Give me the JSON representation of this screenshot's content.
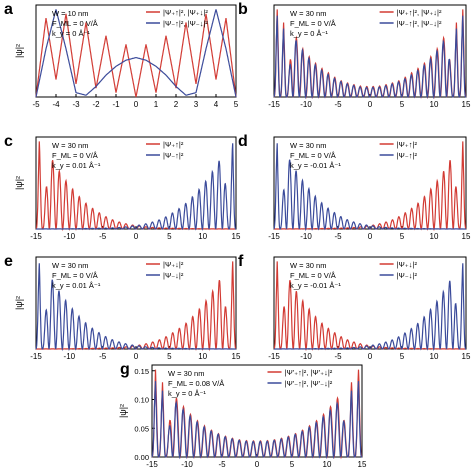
{
  "figure": {
    "ylabel": "|ψ|²"
  },
  "chart_data": [
    {
      "type": "line",
      "panel_label": "a",
      "annotation": [
        "W = 10 nm",
        "F_ML = 0 V/Å",
        "k_y = 0 Å⁻¹"
      ],
      "xlim": [
        -5,
        5
      ],
      "xticks": [
        -5,
        -4,
        -3,
        -2,
        -1,
        0,
        1,
        2,
        3,
        4,
        5
      ],
      "ylabel": "|ψ|²",
      "series": [
        {
          "name": "|Ψ₊↑|², |Ψ₊↓|²",
          "color": "#d23a33",
          "x": [
            -5,
            -4.5,
            -4,
            -3.5,
            -3,
            -2.5,
            -2,
            -1.5,
            -1,
            -0.5,
            0,
            0.5,
            1,
            1.5,
            2,
            2.5,
            3,
            3.5,
            4,
            4.5,
            5
          ],
          "y": [
            0,
            0.9,
            0.2,
            0.95,
            0.15,
            0.85,
            0.1,
            0.7,
            0.05,
            0.6,
            0,
            0.6,
            0.05,
            0.7,
            0.1,
            0.85,
            0.15,
            0.95,
            0.2,
            0.9,
            0
          ]
        },
        {
          "name": "|Ψ₋↑|², |Ψ₋↓|²",
          "color": "#3a4a9a",
          "x": [
            -5,
            -4.5,
            -4,
            -3.5,
            -3,
            -2.5,
            -2,
            -1.5,
            -1,
            -0.5,
            0,
            0.5,
            1,
            1.5,
            2,
            2.5,
            3,
            3.5,
            4,
            4.5,
            5
          ],
          "y": [
            0,
            0.55,
            1.0,
            0.55,
            0.05,
            0.02,
            0.12,
            0.25,
            0.35,
            0.42,
            0.45,
            0.42,
            0.35,
            0.25,
            0.12,
            0.02,
            0.05,
            0.55,
            1.0,
            0.55,
            0
          ]
        }
      ]
    },
    {
      "type": "line",
      "panel_label": "b",
      "annotation": [
        "W = 30 nm",
        "F_ML = 0 V/Å",
        "k_y = 0 Å⁻¹"
      ],
      "xlim": [
        -15,
        15
      ],
      "xticks": [
        -15,
        -10,
        -5,
        0,
        5,
        10,
        15
      ],
      "series": [
        {
          "name": "|Ψ₊↑|², |Ψ₊↓|²",
          "color": "#d23a33",
          "x": [
            -15,
            -14.5,
            -14,
            -13.5,
            -13,
            -12,
            -11,
            -10,
            -9,
            -8,
            -7,
            -6,
            -5,
            -4,
            -3,
            -2,
            -1,
            0,
            1,
            2,
            3,
            4,
            5,
            6,
            7,
            8,
            9,
            10,
            11,
            12,
            13,
            13.5,
            14,
            14.5,
            15
          ],
          "y": [
            0,
            1.0,
            0.1,
            0.85,
            0.05,
            0.75,
            0.6,
            0.5,
            0.42,
            0.35,
            0.3,
            0.25,
            0.2,
            0.17,
            0.15,
            0.13,
            0.12,
            0.12,
            0.12,
            0.13,
            0.15,
            0.17,
            0.2,
            0.25,
            0.3,
            0.35,
            0.42,
            0.5,
            0.6,
            0.75,
            0.05,
            0.85,
            0.1,
            1.0,
            0
          ]
        },
        {
          "name": "|Ψ₋↑|², |Ψ₋↓|²",
          "color": "#3a4a9a",
          "x": [
            -15,
            -14.5,
            -14,
            -13.5,
            -13,
            -12,
            -11,
            -10,
            -9,
            -8,
            -7,
            -6,
            -5,
            -4,
            -3,
            -2,
            -1,
            0,
            1,
            2,
            3,
            4,
            5,
            6,
            7,
            8,
            9,
            10,
            11,
            12,
            13,
            13.5,
            14,
            14.5,
            15
          ],
          "y": [
            0,
            0.95,
            0.1,
            0.8,
            0.05,
            0.7,
            0.58,
            0.48,
            0.4,
            0.33,
            0.28,
            0.23,
            0.19,
            0.16,
            0.14,
            0.12,
            0.11,
            0.11,
            0.11,
            0.12,
            0.14,
            0.16,
            0.19,
            0.23,
            0.28,
            0.33,
            0.4,
            0.48,
            0.58,
            0.7,
            0.05,
            0.8,
            0.1,
            0.95,
            0
          ]
        }
      ]
    },
    {
      "type": "line",
      "panel_label": "c",
      "annotation": [
        "W = 30 nm",
        "F_ML = 0 V/Å",
        "k_y = 0.01 Å⁻¹"
      ],
      "xlim": [
        -15,
        15
      ],
      "xticks": [
        -15,
        -10,
        -5,
        0,
        5,
        10,
        15
      ],
      "ylabel": "|ψ|²",
      "series": [
        {
          "name": "|Ψ₊↑|²",
          "color": "#d23a33",
          "x": [
            -15,
            -14.5,
            -14,
            -13,
            -12,
            -11,
            -10,
            -9,
            -8,
            -7,
            -6,
            -5,
            -4,
            -3,
            -2,
            -1,
            0,
            1,
            2,
            3,
            4,
            5,
            6,
            7,
            8,
            9,
            10,
            11,
            12,
            13,
            14,
            15
          ],
          "y": [
            0,
            1.0,
            0.05,
            0.85,
            0.72,
            0.6,
            0.5,
            0.41,
            0.33,
            0.26,
            0.21,
            0.16,
            0.12,
            0.09,
            0.07,
            0.05,
            0.04,
            0.03,
            0.02,
            0.015,
            0.01,
            0.01,
            0.008,
            0.006,
            0.005,
            0.004,
            0.003,
            0.002,
            0.001,
            0.001,
            0.001,
            0
          ]
        },
        {
          "name": "|Ψ₋↑|²",
          "color": "#3a4a9a",
          "x": [
            -15,
            -14,
            -13,
            -12,
            -11,
            -10,
            -9,
            -8,
            -7,
            -6,
            -5,
            -4,
            -3,
            -2,
            -1,
            0,
            1,
            2,
            3,
            4,
            5,
            6,
            7,
            8,
            9,
            10,
            11,
            12,
            13,
            14,
            14.5,
            15
          ],
          "y": [
            0,
            0.001,
            0.001,
            0.001,
            0.002,
            0.003,
            0.004,
            0.005,
            0.006,
            0.008,
            0.01,
            0.01,
            0.015,
            0.02,
            0.03,
            0.04,
            0.05,
            0.07,
            0.09,
            0.12,
            0.16,
            0.21,
            0.26,
            0.33,
            0.41,
            0.5,
            0.6,
            0.72,
            0.85,
            0.05,
            1.0,
            0
          ]
        }
      ]
    },
    {
      "type": "line",
      "panel_label": "d",
      "annotation": [
        "W = 30 nm",
        "F_ML = 0 V/Å",
        "k_y = -0.01 Å⁻¹"
      ],
      "xlim": [
        -15,
        15
      ],
      "xticks": [
        -15,
        -10,
        -5,
        0,
        5,
        10,
        15
      ],
      "series": [
        {
          "name": "|Ψ₊↑|²",
          "color": "#d23a33",
          "x": [
            -15,
            -14,
            -13,
            -12,
            -11,
            -10,
            -9,
            -8,
            -7,
            -6,
            -5,
            -4,
            -3,
            -2,
            -1,
            0,
            1,
            2,
            3,
            4,
            5,
            6,
            7,
            8,
            9,
            10,
            11,
            12,
            13,
            14,
            14.5,
            15
          ],
          "y": [
            0,
            0.001,
            0.001,
            0.001,
            0.002,
            0.003,
            0.004,
            0.005,
            0.006,
            0.008,
            0.01,
            0.01,
            0.015,
            0.02,
            0.03,
            0.04,
            0.05,
            0.07,
            0.09,
            0.12,
            0.16,
            0.21,
            0.26,
            0.33,
            0.41,
            0.5,
            0.6,
            0.72,
            0.85,
            0.05,
            1.0,
            0
          ]
        },
        {
          "name": "|Ψ₋↑|²",
          "color": "#3a4a9a",
          "x": [
            -15,
            -14.5,
            -14,
            -13,
            -12,
            -11,
            -10,
            -9,
            -8,
            -7,
            -6,
            -5,
            -4,
            -3,
            -2,
            -1,
            0,
            1,
            2,
            3,
            4,
            5,
            6,
            7,
            8,
            9,
            10,
            11,
            12,
            13,
            14,
            15
          ],
          "y": [
            0,
            1.0,
            0.05,
            0.85,
            0.72,
            0.6,
            0.5,
            0.41,
            0.33,
            0.26,
            0.21,
            0.16,
            0.12,
            0.09,
            0.07,
            0.05,
            0.04,
            0.03,
            0.02,
            0.015,
            0.01,
            0.01,
            0.008,
            0.006,
            0.005,
            0.004,
            0.003,
            0.002,
            0.001,
            0.001,
            0.001,
            0
          ]
        }
      ]
    },
    {
      "type": "line",
      "panel_label": "e",
      "annotation": [
        "W = 30 nm",
        "F_ML = 0 V/Å",
        "k_y = 0.01 Å⁻¹"
      ],
      "xlim": [
        -15,
        15
      ],
      "xticks": [
        -15,
        -10,
        -5,
        0,
        5,
        10,
        15
      ],
      "ylabel": "|ψ|²",
      "series": [
        {
          "name": "|Ψ₊↓|²",
          "color": "#d23a33",
          "x": [
            -15,
            -14,
            -13,
            -12,
            -11,
            -10,
            -9,
            -8,
            -7,
            -6,
            -5,
            -4,
            -3,
            -2,
            -1,
            0,
            1,
            2,
            3,
            4,
            5,
            6,
            7,
            8,
            9,
            10,
            11,
            12,
            13,
            14,
            14.5,
            15
          ],
          "y": [
            0,
            0.001,
            0.001,
            0.001,
            0.002,
            0.003,
            0.004,
            0.005,
            0.006,
            0.008,
            0.01,
            0.01,
            0.015,
            0.02,
            0.03,
            0.04,
            0.05,
            0.07,
            0.09,
            0.12,
            0.16,
            0.21,
            0.26,
            0.33,
            0.41,
            0.5,
            0.6,
            0.72,
            0.85,
            0.05,
            1.0,
            0
          ]
        },
        {
          "name": "|Ψ₋↓|²",
          "color": "#3a4a9a",
          "x": [
            -15,
            -14.5,
            -14,
            -13,
            -12,
            -11,
            -10,
            -9,
            -8,
            -7,
            -6,
            -5,
            -4,
            -3,
            -2,
            -1,
            0,
            1,
            2,
            3,
            4,
            5,
            6,
            7,
            8,
            9,
            10,
            11,
            12,
            13,
            14,
            15
          ],
          "y": [
            0,
            1.0,
            0.05,
            0.85,
            0.72,
            0.6,
            0.5,
            0.41,
            0.33,
            0.26,
            0.21,
            0.16,
            0.12,
            0.09,
            0.07,
            0.05,
            0.04,
            0.03,
            0.02,
            0.015,
            0.01,
            0.01,
            0.008,
            0.006,
            0.005,
            0.004,
            0.003,
            0.002,
            0.001,
            0.001,
            0.001,
            0
          ]
        }
      ]
    },
    {
      "type": "line",
      "panel_label": "f",
      "annotation": [
        "W = 30 nm",
        "F_ML = 0 V/Å",
        "k_y = -0.01 Å⁻¹"
      ],
      "xlim": [
        -15,
        15
      ],
      "xticks": [
        -15,
        -10,
        -5,
        0,
        5,
        10,
        15
      ],
      "series": [
        {
          "name": "|Ψ₊↓|²",
          "color": "#d23a33",
          "x": [
            -15,
            -14.5,
            -14,
            -13,
            -12,
            -11,
            -10,
            -9,
            -8,
            -7,
            -6,
            -5,
            -4,
            -3,
            -2,
            -1,
            0,
            1,
            2,
            3,
            4,
            5,
            6,
            7,
            8,
            9,
            10,
            11,
            12,
            13,
            14,
            15
          ],
          "y": [
            0,
            1.0,
            0.05,
            0.85,
            0.72,
            0.6,
            0.5,
            0.41,
            0.33,
            0.26,
            0.21,
            0.16,
            0.12,
            0.09,
            0.07,
            0.05,
            0.04,
            0.03,
            0.02,
            0.015,
            0.01,
            0.01,
            0.008,
            0.006,
            0.005,
            0.004,
            0.003,
            0.002,
            0.001,
            0.001,
            0.001,
            0
          ]
        },
        {
          "name": "|Ψ₋↓|²",
          "color": "#3a4a9a",
          "x": [
            -15,
            -14,
            -13,
            -12,
            -11,
            -10,
            -9,
            -8,
            -7,
            -6,
            -5,
            -4,
            -3,
            -2,
            -1,
            0,
            1,
            2,
            3,
            4,
            5,
            6,
            7,
            8,
            9,
            10,
            11,
            12,
            13,
            14,
            14.5,
            15
          ],
          "y": [
            0,
            0.001,
            0.001,
            0.001,
            0.002,
            0.003,
            0.004,
            0.005,
            0.006,
            0.008,
            0.01,
            0.01,
            0.015,
            0.02,
            0.03,
            0.04,
            0.05,
            0.07,
            0.09,
            0.12,
            0.16,
            0.21,
            0.26,
            0.33,
            0.41,
            0.5,
            0.6,
            0.72,
            0.85,
            0.05,
            1.0,
            0
          ]
        }
      ]
    },
    {
      "type": "line",
      "panel_label": "g",
      "annotation": [
        "W = 30 nm",
        "F_ML = 0.08 V/Å",
        "k_y = 0 Å⁻¹"
      ],
      "xlim": [
        -15,
        15
      ],
      "ylim": [
        0,
        0.16
      ],
      "xticks": [
        -15,
        -10,
        -5,
        0,
        5,
        10,
        15
      ],
      "yticks": [
        0.0,
        0.05,
        0.1,
        0.15
      ],
      "ylabel": "|ψ|²",
      "series": [
        {
          "name": "|Ψ'₊↑|², |Ψ'₊↓|²",
          "color": "#d23a33",
          "x": [
            -15,
            -14.5,
            -14,
            -13.5,
            -13,
            -12,
            -11,
            -10,
            -9,
            -8,
            -7,
            -6,
            -5,
            -4,
            -3,
            -2,
            -1,
            0,
            1,
            2,
            3,
            4,
            5,
            6,
            7,
            8,
            9,
            10,
            11,
            12,
            13,
            13.5,
            14,
            14.5,
            15
          ],
          "y": [
            0,
            0.152,
            0.01,
            0.13,
            0.01,
            0.11,
            0.095,
            0.08,
            0.068,
            0.058,
            0.05,
            0.043,
            0.038,
            0.034,
            0.031,
            0.029,
            0.028,
            0.028,
            0.028,
            0.029,
            0.031,
            0.034,
            0.038,
            0.043,
            0.05,
            0.058,
            0.068,
            0.08,
            0.095,
            0.11,
            0.01,
            0.13,
            0.01,
            0.152,
            0
          ]
        },
        {
          "name": "|Ψ'₋↑|², |Ψ'₋↓|²",
          "color": "#3a4a9a",
          "x": [
            -15,
            -14.5,
            -14,
            -13.5,
            -13,
            -12,
            -11,
            -10,
            -9,
            -8,
            -7,
            -6,
            -5,
            -4,
            -3,
            -2,
            -1,
            0,
            1,
            2,
            3,
            4,
            5,
            6,
            7,
            8,
            9,
            10,
            11,
            12,
            13,
            13.5,
            14,
            14.5,
            15
          ],
          "y": [
            0,
            0.135,
            0.01,
            0.118,
            0.01,
            0.1,
            0.088,
            0.076,
            0.065,
            0.056,
            0.048,
            0.042,
            0.037,
            0.033,
            0.03,
            0.028,
            0.027,
            0.027,
            0.027,
            0.028,
            0.03,
            0.033,
            0.037,
            0.042,
            0.048,
            0.056,
            0.065,
            0.076,
            0.088,
            0.1,
            0.01,
            0.118,
            0.01,
            0.135,
            0
          ]
        }
      ]
    }
  ]
}
